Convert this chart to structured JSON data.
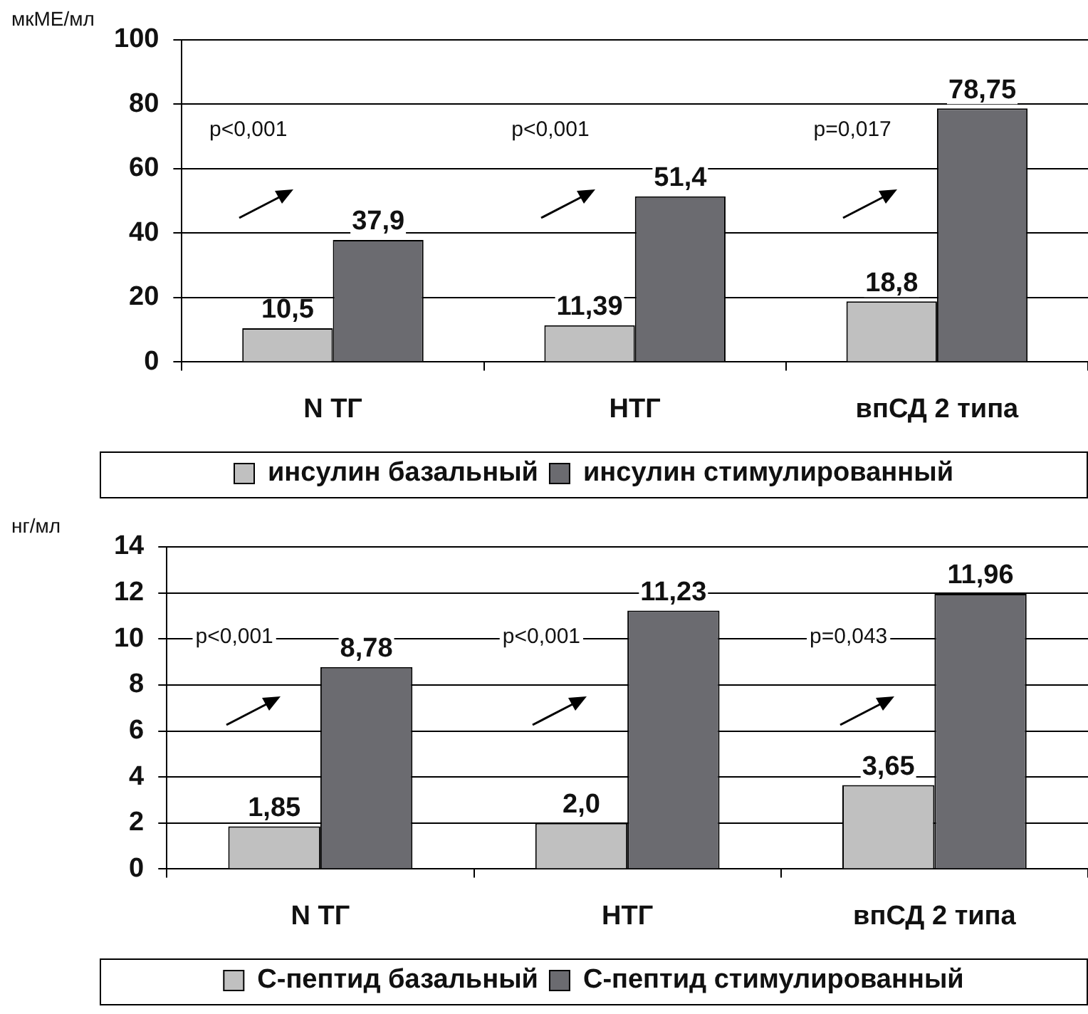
{
  "chart_data": [
    {
      "type": "bar",
      "ylabel": "мкМЕ/мл",
      "categories": [
        "N ТГ",
        "НТГ",
        "впСД 2 типа"
      ],
      "series": [
        {
          "name": "инсулин базальный",
          "color": "#c0c0c0",
          "values": [
            10.5,
            11.39,
            18.8
          ],
          "value_labels": [
            "10,5",
            "11,39",
            "18,8"
          ]
        },
        {
          "name": "инсулин стимулированный",
          "color": "#6b6b70",
          "values": [
            37.9,
            51.4,
            78.75
          ],
          "value_labels": [
            "37,9",
            "51,4",
            "78,75"
          ]
        }
      ],
      "ylim": [
        0,
        100
      ],
      "yticks": [
        0,
        20,
        40,
        60,
        80,
        100
      ],
      "grid": "y",
      "legend": "bottom",
      "annotations": [
        "p<0,001",
        "p<0,001",
        "p=0,017"
      ]
    },
    {
      "type": "bar",
      "ylabel": "нг/мл",
      "categories": [
        "N ТГ",
        "НТГ",
        "впСД 2 типа"
      ],
      "series": [
        {
          "name": "С-пептид базальный",
          "color": "#c0c0c0",
          "values": [
            1.85,
            2.0,
            3.65
          ],
          "value_labels": [
            "1,85",
            "2,0",
            "3,65"
          ]
        },
        {
          "name": "С-пептид стимулированный",
          "color": "#6b6b70",
          "values": [
            8.78,
            11.23,
            11.96
          ],
          "value_labels": [
            "8,78",
            "11,23",
            "11,96"
          ]
        }
      ],
      "ylim": [
        0,
        14
      ],
      "yticks": [
        0,
        2,
        4,
        6,
        8,
        10,
        12,
        14
      ],
      "grid": "y",
      "legend": "bottom",
      "annotations": [
        "p<0,001",
        "p<0,001",
        "p=0,043"
      ]
    }
  ]
}
